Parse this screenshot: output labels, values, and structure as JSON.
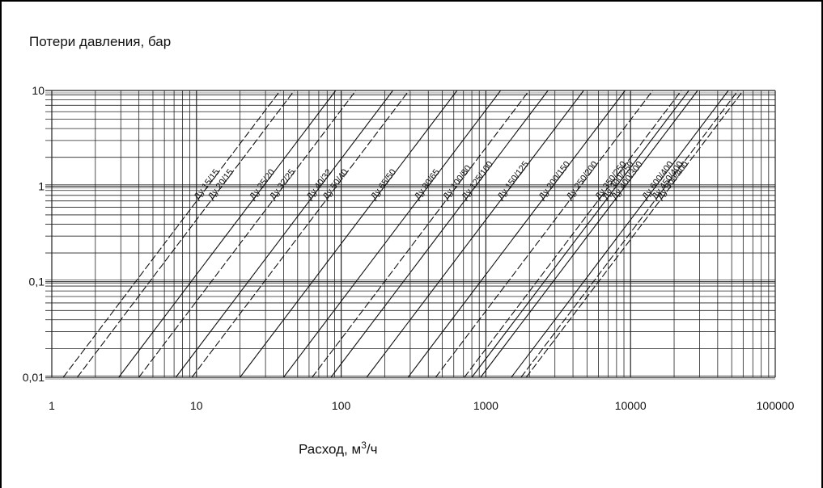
{
  "chart_data": {
    "type": "line",
    "title": "",
    "ylabel": "Потери давления, бар",
    "xlabel_main": "Расход, м",
    "xlabel_sup": "3",
    "xlabel_end": "/ч",
    "x_scale": "log",
    "y_scale": "log",
    "xlim": [
      1,
      100000
    ],
    "ylim": [
      0.01,
      10
    ],
    "grid": true,
    "x_ticks": [
      {
        "value": 1,
        "label": "1"
      },
      {
        "value": 10,
        "label": "10"
      },
      {
        "value": 100,
        "label": "100"
      },
      {
        "value": 1000,
        "label": "1000"
      },
      {
        "value": 10000,
        "label": "10000"
      },
      {
        "value": 100000,
        "label": "100000"
      }
    ],
    "y_ticks": [
      {
        "value": 10,
        "label": "10"
      },
      {
        "value": 1,
        "label": "1"
      },
      {
        "value": 0.1,
        "label": "0,1"
      },
      {
        "value": 0.01,
        "label": "0,01"
      }
    ],
    "series": [
      {
        "name": "Ду 15/15",
        "dash": true,
        "x": [
          1.2,
          10.3
        ]
      },
      {
        "name": "Ду 20/15",
        "dash": true,
        "x": [
          1.5,
          14
        ]
      },
      {
        "name": "Ду 25/20",
        "dash": false,
        "x": [
          2.9,
          27
        ]
      },
      {
        "name": "Ду 32/25",
        "dash": true,
        "x": [
          4.0,
          38
        ]
      },
      {
        "name": "Ду 40/32",
        "dash": false,
        "x": [
          7.2,
          62
        ]
      },
      {
        "name": "Ду 50/40",
        "dash": true,
        "x": [
          9.3,
          85
        ]
      },
      {
        "name": "Ду 65/50",
        "dash": false,
        "x": [
          20,
          180
        ]
      },
      {
        "name": "Ду 80/65",
        "dash": false,
        "x": [
          40,
          380
        ]
      },
      {
        "name": "Ду 100/80",
        "dash": true,
        "x": [
          63,
          570
        ]
      },
      {
        "name": "Ду 125/100",
        "dash": false,
        "x": [
          85,
          800
        ]
      },
      {
        "name": "Ду 150/125",
        "dash": false,
        "x": [
          150,
          1300
        ]
      },
      {
        "name": "Ду 200/150",
        "dash": false,
        "x": [
          290,
          2600
        ]
      },
      {
        "name": "Ду 250/200",
        "dash": true,
        "x": [
          450,
          4200
        ]
      },
      {
        "name": "Ду 350/250",
        "dash": true,
        "x": [
          710,
          6300
        ]
      },
      {
        "name": "Ду 300/250",
        "dash": false,
        "x": [
          800,
          7200
        ]
      },
      {
        "name": "Ду 400/300",
        "dash": false,
        "x": [
          920,
          8300
        ]
      },
      {
        "name": "Ду 600/400",
        "dash": false,
        "x": [
          1500,
          13500
        ]
      },
      {
        "name": "Ду 450/400",
        "dash": true,
        "x": [
          1750,
          16500
        ]
      },
      {
        "name": "Ду 500/400",
        "dash": true,
        "x": [
          1900,
          17800
        ]
      }
    ],
    "series_y": [
      0.01,
      1
    ],
    "label_y": 0.6
  }
}
